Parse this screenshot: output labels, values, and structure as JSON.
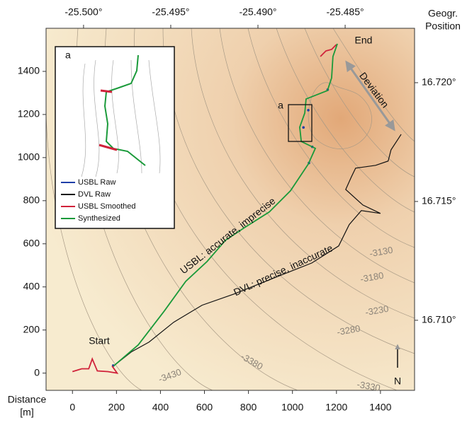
{
  "chart_data": {
    "type": "line",
    "xlabel": [
      "Distance",
      "[m]"
    ],
    "x2label": [
      "Geogr.",
      "Position"
    ],
    "xlim": [
      -120,
      1555
    ],
    "ylim": [
      -80,
      1600
    ],
    "xticks": [
      0,
      200,
      400,
      600,
      800,
      1000,
      1200,
      1400
    ],
    "yticks": [
      0,
      200,
      400,
      600,
      800,
      1000,
      1200,
      1400
    ],
    "x2lim": [
      -25.50215,
      -25.48102
    ],
    "x2ticks": [
      {
        "value": -25.5,
        "label": "-25.500°"
      },
      {
        "value": -25.495,
        "label": "-25.495°"
      },
      {
        "value": -25.49,
        "label": "-25.490°"
      },
      {
        "value": -25.485,
        "label": "-25.485°"
      }
    ],
    "y2lim": [
      16.70705,
      16.72229
    ],
    "y2ticks": [
      {
        "value": 16.71,
        "label": "16.710°"
      },
      {
        "value": 16.715,
        "label": "16.715°"
      },
      {
        "value": 16.72,
        "label": "16.720°"
      }
    ],
    "series": [
      {
        "name": "USBL Raw",
        "color": "#1f3fa8",
        "x": [
          185,
          1072,
          1050,
          1160,
          1090,
          1075
        ],
        "values": [
          35,
          1220,
          1140,
          1315,
          1050,
          975
        ]
      },
      {
        "name": "DVL Raw",
        "color": "#111111",
        "x": [
          187,
          267,
          348,
          460,
          589,
          734,
          927,
          1088,
          1210,
          1258,
          1313,
          1400,
          1320,
          1242,
          1268,
          1287,
          1378,
          1435,
          1448,
          1484,
          1494
        ],
        "values": [
          33,
          98,
          144,
          236,
          315,
          367,
          446,
          511,
          590,
          689,
          754,
          741,
          780,
          852,
          911,
          951,
          964,
          984,
          1036,
          1092,
          1108
        ]
      },
      {
        "name": "USBL Smoothed",
        "color": "#d0223a",
        "x": [
          0,
          42,
          74,
          90,
          113,
          161,
          203,
          180,
          null,
          1127,
          1152,
          1178,
          1200
        ],
        "values": [
          7,
          20,
          20,
          66,
          10,
          7,
          0,
          33,
          null,
          1469,
          1495,
          1502,
          1525
        ]
      },
      {
        "name": "Synthesized",
        "color": "#1a9a3a",
        "x": [
          187,
          299,
          418,
          515,
          612,
          695,
          782,
          895,
          991,
          1072,
          1104,
          1040,
          1033,
          1056,
          1062,
          1159,
          1178,
          1184,
          1204
        ],
        "values": [
          33,
          131,
          289,
          426,
          518,
          616,
          675,
          748,
          846,
          970,
          1043,
          1075,
          1141,
          1207,
          1272,
          1311,
          1370,
          1469,
          1528
        ]
      }
    ],
    "annotations": [
      "Start",
      "End",
      "Deviation",
      "USBL: accurate, imprecise",
      "DVL: precise, inaccurate",
      "a",
      "N"
    ],
    "contour_labels": [
      "-3130",
      "-3180",
      "-3230",
      "-3280",
      "-3330",
      "-3380",
      "-3430"
    ],
    "inset_label": "a"
  }
}
